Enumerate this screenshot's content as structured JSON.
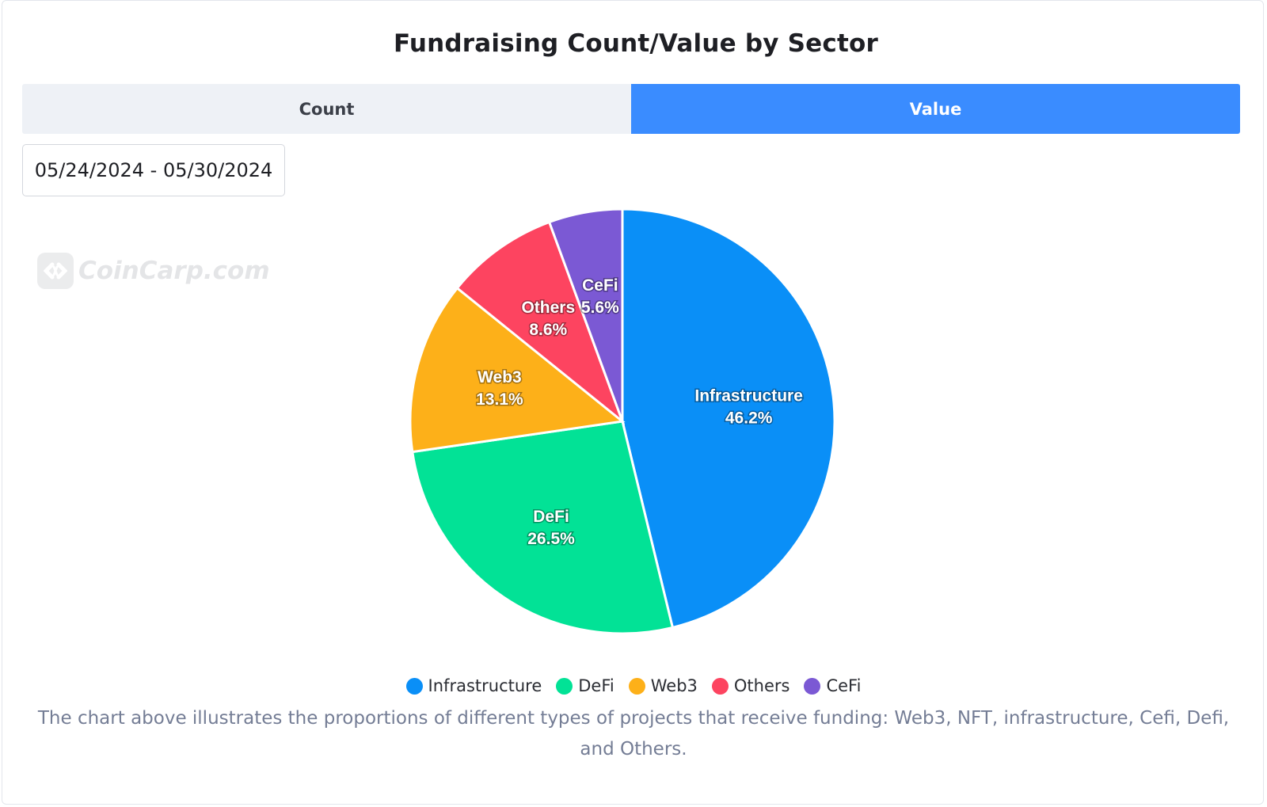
{
  "title": "Fundraising Count/Value by Sector",
  "tabs": [
    {
      "label": "Count",
      "active": false
    },
    {
      "label": "Value",
      "active": true
    }
  ],
  "date_range": "05/24/2024 - 05/30/2024",
  "watermark": "CoinCarp.com",
  "caption": "The chart above illustrates the proportions of different types of projects that receive funding: Web3, NFT, infrastructure, Cefi, Defi, and Others.",
  "colors": {
    "accent": "#3a8cff",
    "Infrastructure": "#0a8ff7",
    "DeFi": "#02e296",
    "Web3": "#fdb019",
    "Others": "#fd4460",
    "CeFi": "#7b59d4"
  },
  "chart_data": {
    "type": "pie",
    "title": "Fundraising Count/Value by Sector",
    "categories": [
      "Infrastructure",
      "DeFi",
      "Web3",
      "Others",
      "CeFi"
    ],
    "values": [
      46.2,
      26.5,
      13.1,
      8.6,
      5.6
    ],
    "labels": [
      "46.2%",
      "26.5%",
      "13.1%",
      "8.6%",
      "5.6%"
    ],
    "legend_position": "bottom-center"
  }
}
